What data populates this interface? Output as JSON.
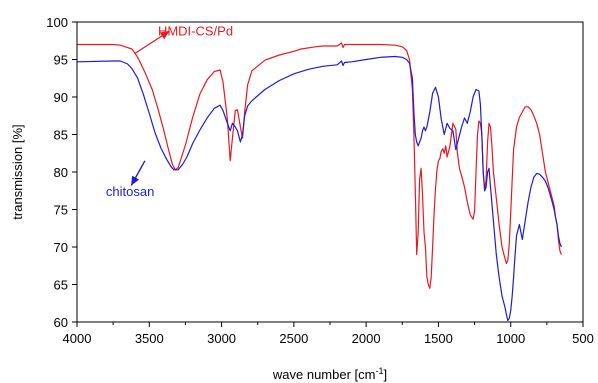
{
  "chart_data": {
    "type": "line",
    "xlabel_main": "wave number [cm",
    "xlabel_sup": "-1",
    "xlabel_end": "]",
    "ylabel": "transmission [%]",
    "xlim": [
      4000,
      500
    ],
    "ylim": [
      60,
      100
    ],
    "x_ticks": [
      "4000",
      "3500",
      "3000",
      "2500",
      "2000",
      "1500",
      "1000",
      "500"
    ],
    "y_ticks": [
      "60",
      "65",
      "70",
      "75",
      "80",
      "85",
      "90",
      "95",
      "100"
    ],
    "x_tick_values": [
      4000,
      3500,
      3000,
      2500,
      2000,
      1500,
      1000,
      500
    ],
    "y_tick_values": [
      60,
      65,
      70,
      75,
      80,
      85,
      90,
      95,
      100
    ],
    "series": [
      {
        "name": "HMDI-CS/Pd",
        "color": "#e8191f",
        "label_x": 3440,
        "label_y": 98.2,
        "arrow_from": [
          3600,
          95.8
        ],
        "arrow_to": [
          3360,
          98.8
        ],
        "x": [
          4000,
          3750,
          3700,
          3620,
          3580,
          3530,
          3480,
          3440,
          3400,
          3370,
          3340,
          3320,
          3300,
          3250,
          3200,
          3150,
          3100,
          3050,
          3010,
          2990,
          2960,
          2940,
          2925,
          2905,
          2890,
          2870,
          2855,
          2840,
          2820,
          2790,
          2700,
          2600,
          2500,
          2450,
          2350,
          2300,
          2200,
          2170,
          2160,
          2150,
          2100,
          2000,
          1900,
          1800,
          1750,
          1720,
          1700,
          1680,
          1670,
          1660,
          1650,
          1640,
          1630,
          1620,
          1610,
          1600,
          1590,
          1580,
          1570,
          1560,
          1550,
          1540,
          1530,
          1520,
          1510,
          1500,
          1490,
          1480,
          1470,
          1460,
          1450,
          1440,
          1420,
          1400,
          1380,
          1370,
          1355,
          1340,
          1320,
          1300,
          1280,
          1260,
          1250,
          1240,
          1230,
          1220,
          1210,
          1200,
          1190,
          1180,
          1170,
          1160,
          1150,
          1140,
          1130,
          1120,
          1100,
          1080,
          1060,
          1040,
          1030,
          1020,
          1010,
          1000,
          990,
          980,
          960,
          940,
          920,
          900,
          880,
          860,
          840,
          820,
          800,
          780,
          760,
          740,
          720,
          700,
          690,
          680,
          670,
          660,
          650
        ],
        "y": [
          97.0,
          97.0,
          96.9,
          96.4,
          95.3,
          93.3,
          91.0,
          88.4,
          85.6,
          83.2,
          81.0,
          80.3,
          80.6,
          83.6,
          87.3,
          90.4,
          92.3,
          93.4,
          93.6,
          92.0,
          87.0,
          81.5,
          84.5,
          88.2,
          88.3,
          86.0,
          84.5,
          88.0,
          91.6,
          93.5,
          94.9,
          95.6,
          96.1,
          96.4,
          96.7,
          96.8,
          96.8,
          97.2,
          96.6,
          97.0,
          97.0,
          97.0,
          97.0,
          96.9,
          96.7,
          96.2,
          95.0,
          91.0,
          85.0,
          77.5,
          69.0,
          72.0,
          79.0,
          80.5,
          77.0,
          72.0,
          70.0,
          66.0,
          65.0,
          64.5,
          66.0,
          70.0,
          74.5,
          77.8,
          80.3,
          81.5,
          81.8,
          82.8,
          83.1,
          82.5,
          83.5,
          82.0,
          83.5,
          86.5,
          85.7,
          82.8,
          80.5,
          79.5,
          78.0,
          76.0,
          74.3,
          73.7,
          74.8,
          80.0,
          85.0,
          86.8,
          86.5,
          85.0,
          80.0,
          77.5,
          79.0,
          84.0,
          86.5,
          86.0,
          83.5,
          80.0,
          76.5,
          73.0,
          70.0,
          68.5,
          67.8,
          68.2,
          70.5,
          74.5,
          79.0,
          83.0,
          86.0,
          87.3,
          88.0,
          88.7,
          88.7,
          88.3,
          87.5,
          86.5,
          85.0,
          82.5,
          80.0,
          78.5,
          77.0,
          75.5,
          74.0,
          73.0,
          71.0,
          69.5,
          69.0
        ]
      },
      {
        "name": "chitosan",
        "color": "#1c1cd8",
        "label_x": 3800,
        "label_y": 76.8,
        "arrow_from": [
          3530,
          81.5
        ],
        "arrow_to": [
          3625,
          78.2
        ],
        "x": [
          4000,
          3750,
          3700,
          3650,
          3620,
          3580,
          3540,
          3500,
          3460,
          3420,
          3380,
          3350,
          3330,
          3300,
          3270,
          3240,
          3200,
          3150,
          3100,
          3050,
          3010,
          2990,
          2960,
          2940,
          2925,
          2905,
          2890,
          2870,
          2855,
          2840,
          2820,
          2790,
          2700,
          2600,
          2500,
          2400,
          2300,
          2200,
          2170,
          2160,
          2150,
          2100,
          2000,
          1900,
          1800,
          1750,
          1720,
          1700,
          1680,
          1670,
          1660,
          1650,
          1640,
          1630,
          1620,
          1610,
          1600,
          1590,
          1580,
          1560,
          1540,
          1520,
          1500,
          1480,
          1460,
          1440,
          1420,
          1400,
          1380,
          1360,
          1340,
          1320,
          1300,
          1280,
          1260,
          1240,
          1220,
          1210,
          1200,
          1190,
          1180,
          1170,
          1160,
          1150,
          1140,
          1120,
          1100,
          1080,
          1060,
          1040,
          1030,
          1020,
          1010,
          1000,
          990,
          980,
          970,
          960,
          940,
          920,
          900,
          880,
          860,
          840,
          820,
          800,
          780,
          760,
          740,
          720,
          700,
          690,
          680,
          670,
          660,
          650
        ],
        "y": [
          94.7,
          94.8,
          94.8,
          94.4,
          93.8,
          92.5,
          90.3,
          87.8,
          85.2,
          83.2,
          81.7,
          80.7,
          80.3,
          80.3,
          81.0,
          82.0,
          83.8,
          85.6,
          87.2,
          88.5,
          88.9,
          88.2,
          86.5,
          85.5,
          86.5,
          86.0,
          85.5,
          84.0,
          85.0,
          87.5,
          88.8,
          89.5,
          91.0,
          92.2,
          93.1,
          93.7,
          94.1,
          94.3,
          94.8,
          94.2,
          94.6,
          94.7,
          95.0,
          95.3,
          95.4,
          95.3,
          95.0,
          94.5,
          92.5,
          88.0,
          85.0,
          84.0,
          83.5,
          84.0,
          84.5,
          85.5,
          86.0,
          85.5,
          86.0,
          88.0,
          90.5,
          91.3,
          90.0,
          87.0,
          85.0,
          86.5,
          85.8,
          85.5,
          83.0,
          84.5,
          86.0,
          87.2,
          86.5,
          88.0,
          90.0,
          91.0,
          90.8,
          89.0,
          85.0,
          80.0,
          77.5,
          78.0,
          80.0,
          80.5,
          78.0,
          73.5,
          69.0,
          66.0,
          63.5,
          62.0,
          61.0,
          60.2,
          60.5,
          61.5,
          63.5,
          66.0,
          69.0,
          71.5,
          73.0,
          71.0,
          73.5,
          76.0,
          78.0,
          79.3,
          79.8,
          79.7,
          79.3,
          78.8,
          77.8,
          76.5,
          75.0,
          74.0,
          73.0,
          71.5,
          70.5,
          70.0
        ]
      }
    ]
  }
}
